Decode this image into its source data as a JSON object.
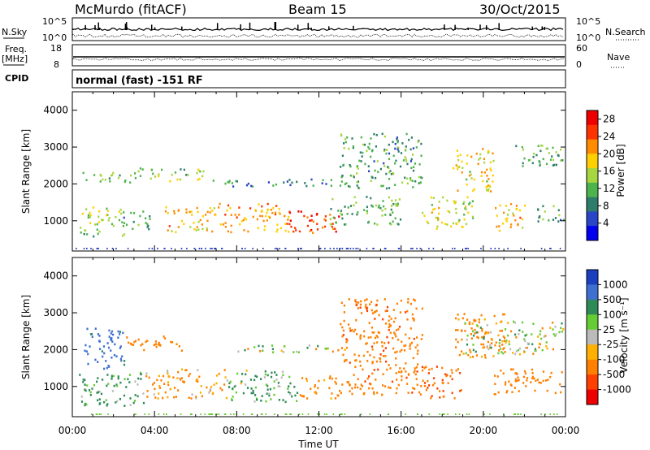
{
  "header": {
    "station": "McMurdo (fitACF)",
    "beam": "Beam 15",
    "date": "30/Oct/2015"
  },
  "top_panels": {
    "nsky_label": "N.Sky",
    "nsky_ticks": [
      "10^5",
      "10^0"
    ],
    "nsearch_label": "N.Search",
    "nsearch_ticks": [
      "10^5",
      "10^0"
    ],
    "freq_label": "Freq.",
    "freq_unit": "[MHz]",
    "freq_ticks": [
      "18",
      "8"
    ],
    "nave_label": "Nave",
    "nave_ticks": [
      "60",
      "0"
    ],
    "cpid_label": "CPID",
    "cpid_text": "normal (fast) -151 RF"
  },
  "x_axis": {
    "label": "Time UT",
    "ticks": [
      "00:00",
      "04:00",
      "08:00",
      "12:00",
      "16:00",
      "20:00",
      "00:00"
    ]
  },
  "chart_data": [
    {
      "type": "heatmap",
      "title": "",
      "ylabel": "Slant Range [km]",
      "xlabel": "Time UT",
      "xlim": [
        "00:00",
        "24:00"
      ],
      "ylim": [
        180,
        4500
      ],
      "yticks": [
        "1000",
        "2000",
        "3000",
        "4000"
      ],
      "colorbar": {
        "label": "Power [dB]",
        "ticks": [
          "4",
          "8",
          "12",
          "16",
          "20",
          "24",
          "28"
        ],
        "range": [
          0,
          30
        ],
        "colors": [
          "#0000ee",
          "#2a45c8",
          "#2e7d6a",
          "#4db34d",
          "#a6d640",
          "#ffd000",
          "#ff8c00",
          "#ff3300",
          "#ee0000"
        ]
      },
      "regions": [
        {
          "t": [
            0.5,
            3.0
          ],
          "r": [
            2050,
            2350
          ],
          "level": 12
        },
        {
          "t": [
            3.0,
            6.5
          ],
          "r": [
            2100,
            2450
          ],
          "level": 14
        },
        {
          "t": [
            0.3,
            2.5
          ],
          "r": [
            600,
            1400
          ],
          "level": 14
        },
        {
          "t": [
            2.3,
            3.8
          ],
          "r": [
            800,
            1300
          ],
          "level": 10
        },
        {
          "t": [
            4.5,
            7.0
          ],
          "r": [
            700,
            1400
          ],
          "level": 20
        },
        {
          "t": [
            7.0,
            10.5
          ],
          "r": [
            700,
            1500
          ],
          "level": 22
        },
        {
          "t": [
            10.5,
            13.0
          ],
          "r": [
            700,
            1300
          ],
          "level": 26
        },
        {
          "t": [
            12.5,
            16.0
          ],
          "r": [
            900,
            1700
          ],
          "level": 12
        },
        {
          "t": [
            13.0,
            17.0
          ],
          "r": [
            1900,
            3400
          ],
          "level": 10
        },
        {
          "t": [
            17.0,
            19.5
          ],
          "r": [
            800,
            1700
          ],
          "level": 16
        },
        {
          "t": [
            18.5,
            20.5
          ],
          "r": [
            1800,
            3000
          ],
          "level": 18
        },
        {
          "t": [
            20.5,
            22.0
          ],
          "r": [
            700,
            1500
          ],
          "level": 20
        },
        {
          "t": [
            21.5,
            24.0
          ],
          "r": [
            2500,
            3100
          ],
          "level": 12
        },
        {
          "t": [
            22.5,
            24.0
          ],
          "r": [
            1000,
            1500
          ],
          "level": 10
        },
        {
          "t": [
            6.5,
            13.5
          ],
          "r": [
            1950,
            2150
          ],
          "level": 8
        }
      ]
    },
    {
      "type": "heatmap",
      "title": "",
      "ylabel": "Slant Range [km]",
      "xlabel": "Time UT",
      "xlim": [
        "00:00",
        "24:00"
      ],
      "ylim": [
        180,
        4500
      ],
      "yticks": [
        "1000",
        "2000",
        "3000",
        "4000"
      ],
      "colorbar": {
        "label": "Velocity [m s⁻¹]",
        "ticks": [
          "1000",
          "500",
          "100",
          "25",
          "-25",
          "-100",
          "-500",
          "-1000"
        ],
        "colors": [
          "#1a3fbf",
          "#3f6fd0",
          "#2e8b57",
          "#66cc33",
          "#bbbbbb",
          "#ffb000",
          "#ff8000",
          "#ff4000",
          "#ee0000"
        ]
      },
      "regions": [
        {
          "t": [
            0.5,
            2.5
          ],
          "r": [
            1500,
            2600
          ],
          "velocity": 600
        },
        {
          "t": [
            2.5,
            5.5
          ],
          "r": [
            2000,
            2400
          ],
          "velocity": -300
        },
        {
          "t": [
            0.3,
            3.5
          ],
          "r": [
            500,
            1400
          ],
          "velocity": 150
        },
        {
          "t": [
            3.5,
            7.5
          ],
          "r": [
            700,
            1500
          ],
          "velocity": -150
        },
        {
          "t": [
            7.5,
            11.0
          ],
          "r": [
            600,
            1500
          ],
          "velocity": 120
        },
        {
          "t": [
            11.0,
            13.0
          ],
          "r": [
            700,
            1300
          ],
          "velocity": -200
        },
        {
          "t": [
            13.0,
            17.0
          ],
          "r": [
            800,
            3400
          ],
          "velocity": -400
        },
        {
          "t": [
            17.0,
            19.0
          ],
          "r": [
            700,
            1600
          ],
          "velocity": -500
        },
        {
          "t": [
            18.5,
            21.0
          ],
          "r": [
            1800,
            3000
          ],
          "velocity": -200
        },
        {
          "t": [
            19.0,
            24.0
          ],
          "r": [
            1900,
            2800
          ],
          "velocity": 0
        },
        {
          "t": [
            20.5,
            24.0
          ],
          "r": [
            800,
            1500
          ],
          "velocity": -300
        },
        {
          "t": [
            8.0,
            13.5
          ],
          "r": [
            1950,
            2150
          ],
          "velocity": 10
        }
      ]
    }
  ]
}
